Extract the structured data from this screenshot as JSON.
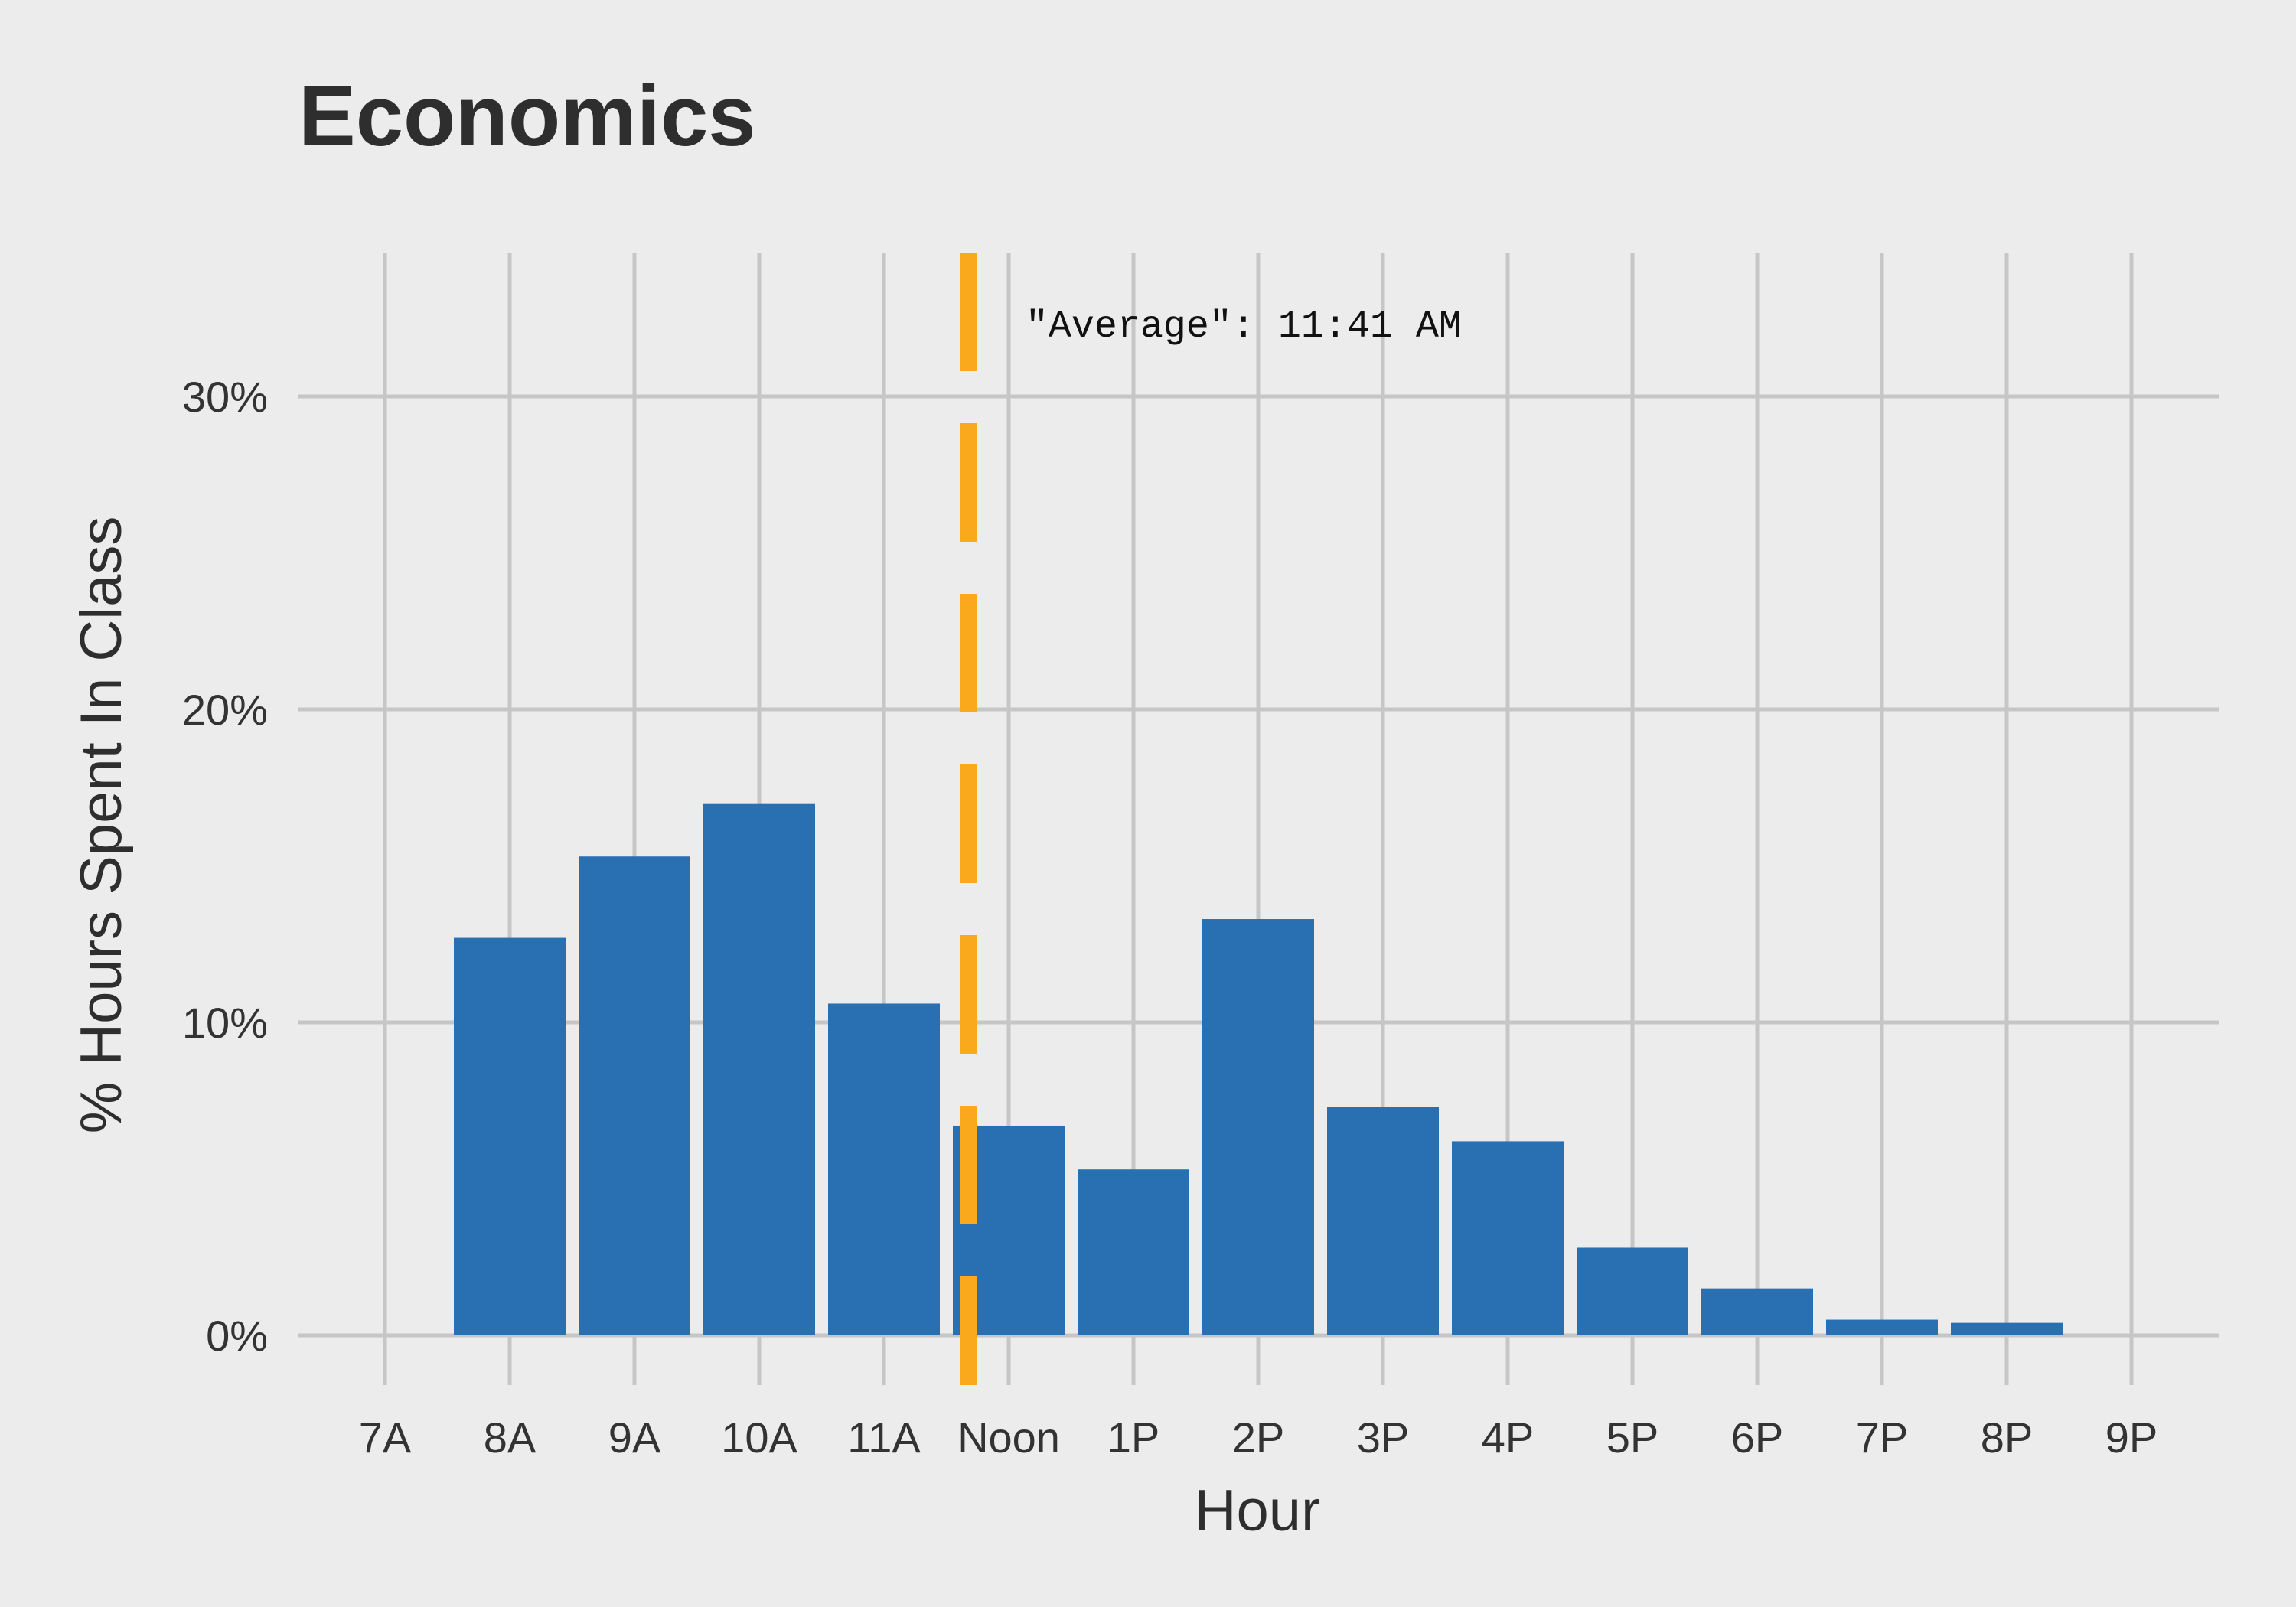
{
  "chart_data": {
    "type": "bar",
    "title": "Economics",
    "xlabel": "Hour",
    "ylabel": "% Hours Spent In Class",
    "categories": [
      "7A",
      "8A",
      "9A",
      "10A",
      "11A",
      "Noon",
      "1P",
      "2P",
      "3P",
      "4P",
      "5P",
      "6P",
      "7P",
      "8P",
      "9P"
    ],
    "values": [
      0,
      12.7,
      15.3,
      17.0,
      10.6,
      6.7,
      5.3,
      13.3,
      7.3,
      6.2,
      2.8,
      1.5,
      0.5,
      0.4,
      0
    ],
    "ylim": [
      -1.6,
      34.6
    ],
    "yticks": [
      0,
      10,
      20,
      30
    ],
    "ytick_labels": [
      "0%",
      "10%",
      "20%",
      "30%"
    ],
    "grid": true,
    "bar_color": "#2870b1",
    "average_line": {
      "hour_value": 11.68,
      "label": "\"Average\": 11:41 AM",
      "color": "#f9a91b",
      "style": "dashed"
    }
  }
}
